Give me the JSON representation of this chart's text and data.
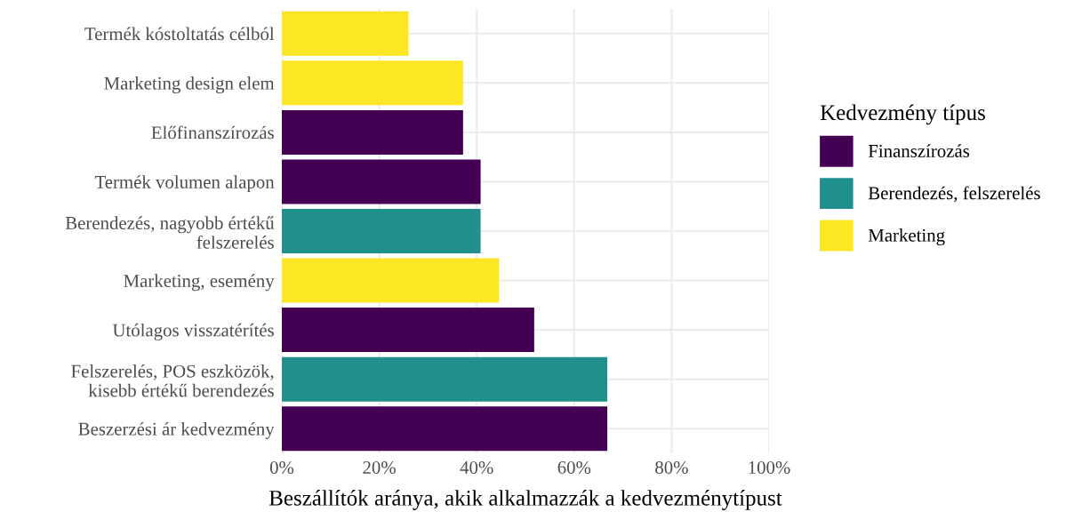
{
  "chart_data": {
    "type": "bar",
    "orientation": "horizontal",
    "xlabel": "Beszállítók aránya, akik alkalmazzák a kedvezménytípust",
    "legend_title": "Kedvezmény típus",
    "categories": [
      "Termék kóstoltatás célból",
      "Marketing design elem",
      "Előfinanszírozás",
      "Termék volumen alapon",
      "Berendezés, nagyobb értékű\nfelszerelés",
      "Marketing, esemény",
      "Utólagos visszatérítés",
      "Felszerelés, POS eszközök,\nkisebb értékű berendezés",
      "Beszerzési ár kedvezmény"
    ],
    "series": [
      {
        "name": "Finanszírozás",
        "color": "#440154",
        "values": [
          null,
          null,
          37.2,
          40.8,
          null,
          null,
          51.8,
          null,
          66.8
        ]
      },
      {
        "name": "Berendezés, felszerelés",
        "color": "#21908c",
        "values": [
          null,
          null,
          null,
          null,
          40.8,
          null,
          null,
          66.8,
          null
        ]
      },
      {
        "name": "Marketing",
        "color": "#fde725",
        "values": [
          26,
          37.2,
          null,
          null,
          null,
          44.6,
          null,
          null,
          null
        ]
      }
    ],
    "xlim": [
      0,
      100
    ],
    "xticks": [
      {
        "value": 0,
        "label": "0%"
      },
      {
        "value": 20,
        "label": "20%"
      },
      {
        "value": 40,
        "label": "40%"
      },
      {
        "value": 60,
        "label": "60%"
      },
      {
        "value": 80,
        "label": "80%"
      },
      {
        "value": 100,
        "label": "100%"
      }
    ],
    "grid": true,
    "legend": "right"
  }
}
